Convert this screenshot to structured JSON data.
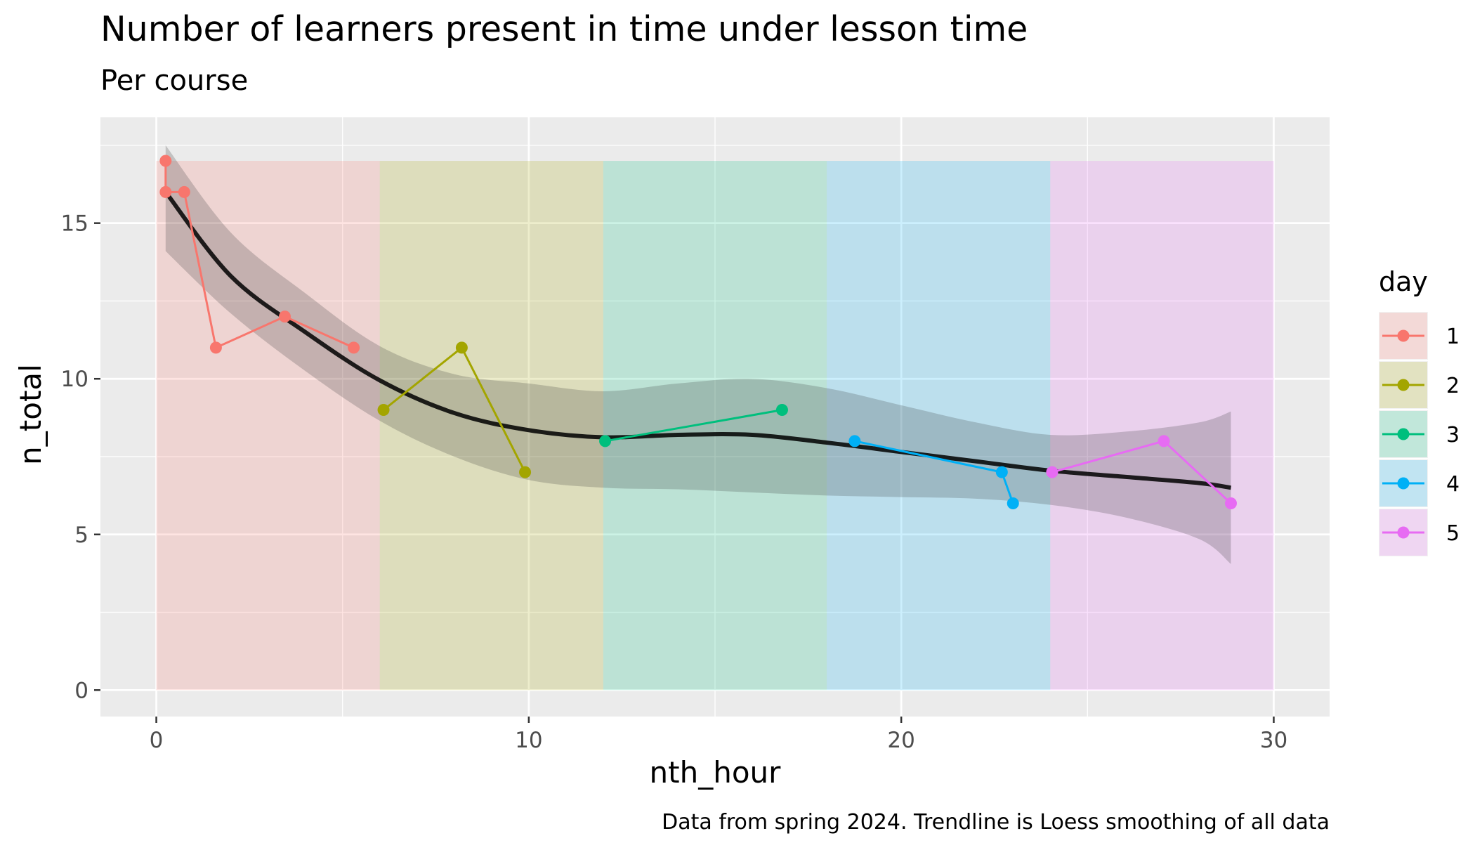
{
  "chart_data": {
    "type": "line",
    "title": "Number of learners present in time under lesson time",
    "subtitle": "Per course",
    "xlabel": "nth_hour",
    "ylabel": "n_total",
    "caption": "Data from spring 2024. Trendline is Loess smoothing of all data",
    "xlim": [
      -1.5,
      31.5
    ],
    "ylim": [
      -0.85,
      18.4
    ],
    "x_ticks": [
      0,
      10,
      20,
      30
    ],
    "y_ticks": [
      0,
      5,
      10,
      15
    ],
    "grid": true,
    "legend": {
      "title": "day",
      "placement": "right"
    },
    "day_bands": [
      {
        "day": "1",
        "x0": 0,
        "x1": 6,
        "y1": 17
      },
      {
        "day": "2",
        "x0": 6,
        "x1": 12,
        "y1": 17
      },
      {
        "day": "3",
        "x0": 12,
        "x1": 18,
        "y1": 17
      },
      {
        "day": "4",
        "x0": 18,
        "x1": 24,
        "y1": 17
      },
      {
        "day": "5",
        "x0": 24,
        "x1": 30,
        "y1": 17
      }
    ],
    "series": [
      {
        "name": "1",
        "color": "#F8766D",
        "x": [
          0.25,
          0.25,
          0.75,
          1.6,
          3.45,
          5.3
        ],
        "y": [
          17,
          16,
          16,
          11,
          12,
          11
        ]
      },
      {
        "name": "2",
        "color": "#A3A500",
        "x": [
          6.1,
          8.2,
          9.9
        ],
        "y": [
          9,
          11,
          7
        ]
      },
      {
        "name": "3",
        "color": "#00BF7D",
        "x": [
          12.05,
          16.8
        ],
        "y": [
          8,
          9
        ]
      },
      {
        "name": "4",
        "color": "#00B0F6",
        "x": [
          18.75,
          22.7,
          23.0
        ],
        "y": [
          8,
          7,
          6
        ]
      },
      {
        "name": "5",
        "color": "#E76BF3",
        "x": [
          24.05,
          27.05,
          28.85
        ],
        "y": [
          7,
          8,
          6
        ]
      }
    ],
    "trend": {
      "color": "#000000",
      "x": [
        0.25,
        2,
        4,
        6,
        8,
        10,
        12,
        14,
        16,
        18,
        20,
        22,
        24,
        26,
        28,
        28.85
      ],
      "y": [
        16.0,
        13.3,
        11.5,
        9.95,
        8.9,
        8.35,
        8.12,
        8.2,
        8.2,
        7.95,
        7.65,
        7.35,
        7.05,
        6.85,
        6.65,
        6.5
      ],
      "lower": [
        14.1,
        12.1,
        10.25,
        8.65,
        7.5,
        6.75,
        6.5,
        6.45,
        6.35,
        6.25,
        6.2,
        6.15,
        5.95,
        5.55,
        4.85,
        4.05
      ],
      "upper": [
        17.5,
        14.7,
        12.75,
        11.05,
        10.15,
        9.85,
        9.6,
        9.85,
        10.0,
        9.7,
        9.15,
        8.6,
        8.2,
        8.3,
        8.6,
        8.95
      ]
    }
  }
}
